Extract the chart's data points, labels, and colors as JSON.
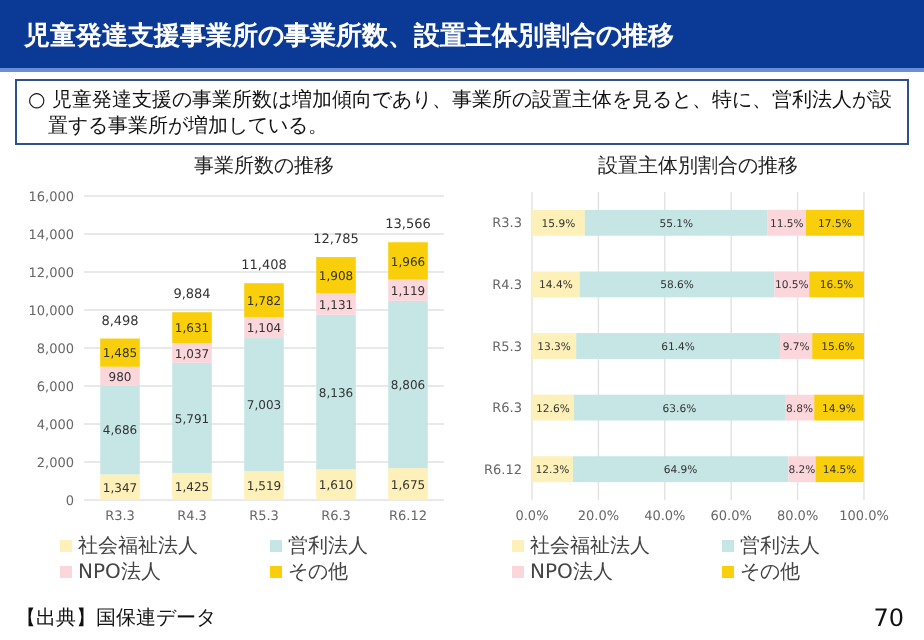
{
  "chart_data": [
    {
      "type": "other",
      "title": "児童発達支援事業所の事業所数、設置主体別割合の推移",
      "annotations": [
        "○ 児童発達支援の事業所数は増加傾向であり、事業所の設置主体を見ると、特に、営利法人が設置する事業所が増加している。",
        "【出典】国保連データ",
        "70"
      ]
    },
    {
      "type": "bar",
      "stacked": true,
      "title": "事業所数の推移",
      "categories": [
        "R3.3",
        "R4.3",
        "R5.3",
        "R6.3",
        "R6.12"
      ],
      "series": [
        {
          "name": "社会福祉法人",
          "color": "#fdf0b8",
          "values": [
            1347,
            1425,
            1519,
            1610,
            1675
          ],
          "value_labels": [
            "1,347",
            "1,425",
            "1,519",
            "1,610",
            "1,675"
          ]
        },
        {
          "name": "営利法人",
          "color": "#c6e6e6",
          "values": [
            4686,
            5791,
            7003,
            8136,
            8806
          ],
          "value_labels": [
            "4,686",
            "5,791",
            "7,003",
            "8,136",
            "8,806"
          ]
        },
        {
          "name": "NPO法人",
          "color": "#fbd7dc",
          "values": [
            980,
            1037,
            1104,
            1131,
            1119
          ],
          "value_labels": [
            "980",
            "1,037",
            "1,104",
            "1,131",
            "1,119"
          ]
        },
        {
          "name": "その他",
          "color": "#f8cf0a",
          "values": [
            1485,
            1631,
            1782,
            1908,
            1966
          ],
          "value_labels": [
            "1,485",
            "1,631",
            "1,782",
            "1,908",
            "1,966"
          ]
        }
      ],
      "ylim": [
        0,
        16000
      ],
      "yticks": [
        0,
        {
          "value": 2000,
          "label": "2,000"
        },
        {
          "value": 4000,
          "label": "4,000"
        },
        {
          "value": 6000,
          "label": "6,000"
        },
        {
          "value": 8000,
          "label": "8,000"
        },
        {
          "value": 10000,
          "label": "10,000"
        },
        {
          "value": 12000,
          "label": "12,000"
        },
        {
          "value": 14000,
          "label": "14,000"
        },
        {
          "value": 16000,
          "label": "16,000"
        }
      ],
      "grid": "y",
      "legend": "bottom",
      "totals": [
        "8,498",
        "9,884",
        "11,408",
        "12,785",
        "13,566"
      ]
    },
    {
      "type": "bar",
      "stacked": true,
      "orientation": "horizontal",
      "title": "設置主体別割合の推移",
      "categories": [
        "R3.3",
        "R4.3",
        "R5.3",
        "R6.3",
        "R6.12"
      ],
      "series": [
        {
          "name": "社会福祉法人",
          "color": "#fdf0b8",
          "values": [
            15.9,
            14.4,
            13.3,
            12.6,
            12.3
          ],
          "value_labels": [
            "15.9%",
            "14.4%",
            "13.3%",
            "12.6%",
            "12.3%"
          ]
        },
        {
          "name": "営利法人",
          "color": "#c6e6e6",
          "values": [
            55.1,
            58.6,
            61.4,
            63.6,
            64.9
          ],
          "value_labels": [
            "55.1%",
            "58.6%",
            "61.4%",
            "63.6%",
            "64.9%"
          ]
        },
        {
          "name": "NPO法人",
          "color": "#fbd7dc",
          "values": [
            11.5,
            10.5,
            9.7,
            8.8,
            8.2
          ],
          "value_labels": [
            "11.5%",
            "10.5%",
            "9.7%",
            "8.8%",
            "8.2%"
          ]
        },
        {
          "name": "その他",
          "color": "#f8cf0a",
          "values": [
            17.5,
            16.5,
            15.6,
            14.9,
            14.5
          ],
          "value_labels": [
            "17.5%",
            "16.5%",
            "15.6%",
            "14.9%",
            "14.5%"
          ]
        }
      ],
      "xlim": [
        0,
        100
      ],
      "xticks": [
        {
          "value": 0,
          "label": "0.0%"
        },
        {
          "value": 20,
          "label": "20.0%"
        },
        {
          "value": 40,
          "label": "40.0%"
        },
        {
          "value": 60,
          "label": "60.0%"
        },
        {
          "value": 80,
          "label": "80.0%"
        },
        {
          "value": 100,
          "label": "100.0%"
        }
      ],
      "grid": "x",
      "legend": "bottom"
    }
  ]
}
